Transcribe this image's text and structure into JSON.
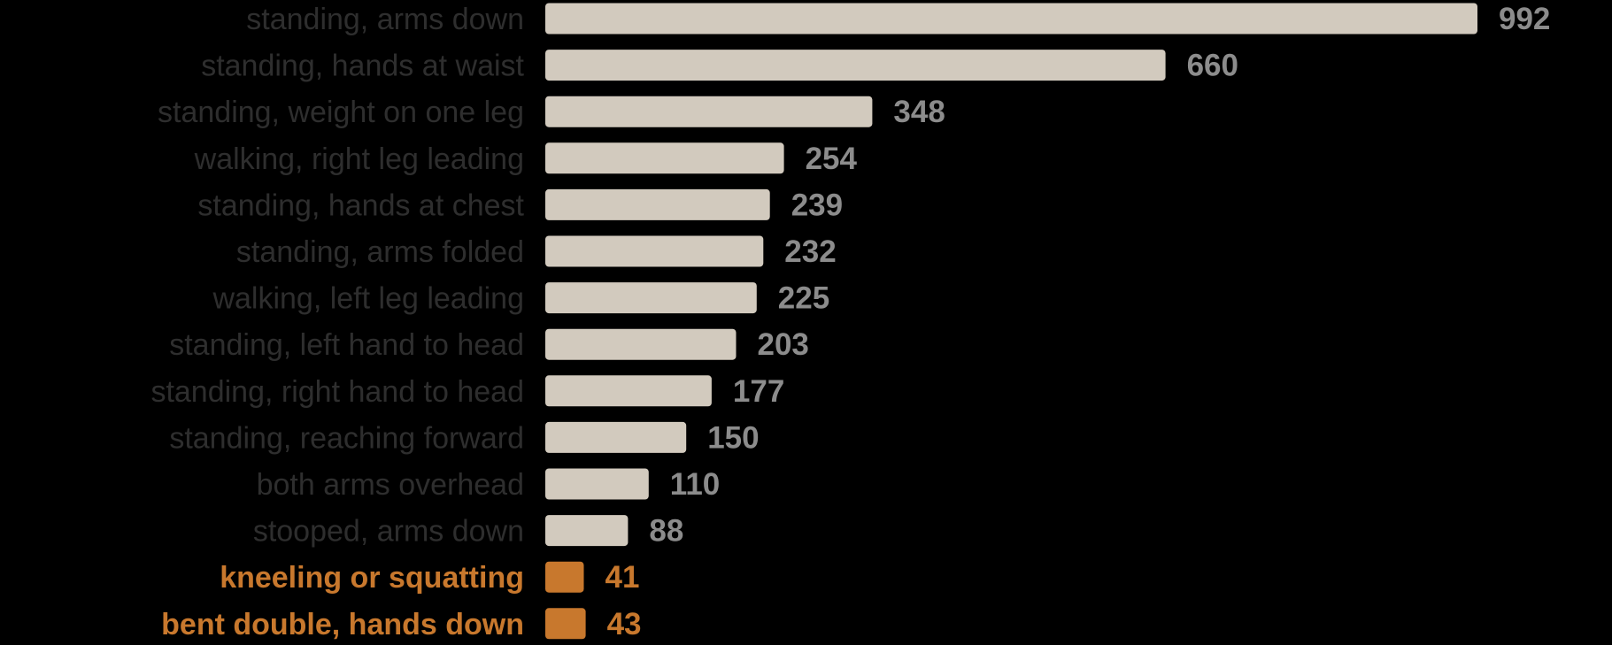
{
  "chart_data": {
    "type": "bar",
    "orientation": "horizontal",
    "categories": [
      "standing, arms down",
      "standing, hands at waist",
      "standing, weight on one leg",
      "walking, right leg leading",
      "standing, hands at chest",
      "standing, arms folded",
      "walking, left leg leading",
      "standing, left hand to head",
      "standing, right hand to head",
      "standing, reaching forward",
      "both arms overhead",
      "stooped, arms down",
      "kneeling or squatting",
      "bent double, hands down"
    ],
    "values": [
      992,
      660,
      348,
      254,
      239,
      232,
      225,
      203,
      177,
      150,
      110,
      88,
      41,
      43
    ],
    "highlighted": [
      false,
      false,
      false,
      false,
      false,
      false,
      false,
      false,
      false,
      false,
      false,
      false,
      true,
      true
    ],
    "xlim": [
      0,
      992
    ],
    "grid": false,
    "legend": "none",
    "title": "",
    "xlabel": "",
    "ylabel": ""
  },
  "colors": {
    "background": "#000000",
    "bar": "#d2cabe",
    "highlight": "#c8782d",
    "category_label": "#2e2e2e",
    "value_label": "#8c8c8c"
  }
}
